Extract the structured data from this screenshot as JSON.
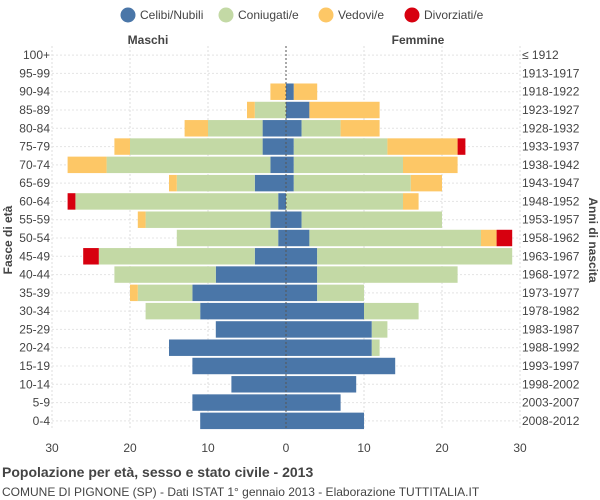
{
  "chart_data": {
    "type": "bar",
    "orientation": "horizontal-pyramid",
    "title": "Popolazione per età, sesso e stato civile - 2013",
    "subtitle": "COMUNE DI PIGNONE (SP) - Dati ISTAT 1° gennaio 2013 - Elaborazione TUTTITALIA.IT",
    "left_label": "Maschi",
    "right_label": "Femmine",
    "ylabel_left": "Fasce di età",
    "ylabel_right": "Anni di nascita",
    "xlim": [
      -30,
      30
    ],
    "x_ticks": [
      -30,
      -20,
      -10,
      0,
      10,
      20,
      30
    ],
    "x_tick_labels": [
      "30",
      "20",
      "10",
      "0",
      "10",
      "20",
      "30"
    ],
    "legend": [
      {
        "key": "celibi",
        "label": "Celibi/Nubili",
        "color": "#4a76a8"
      },
      {
        "key": "coniugati",
        "label": "Coniugati/e",
        "color": "#c3d9a5"
      },
      {
        "key": "vedovi",
        "label": "Vedovi/e",
        "color": "#fdc766"
      },
      {
        "key": "divorziati",
        "label": "Divorziati/e",
        "color": "#d7000f"
      }
    ],
    "categories": [
      "100+",
      "95-99",
      "90-94",
      "85-89",
      "80-84",
      "75-79",
      "70-74",
      "65-69",
      "60-64",
      "55-59",
      "50-54",
      "45-49",
      "40-44",
      "35-39",
      "30-34",
      "25-29",
      "20-24",
      "15-19",
      "10-14",
      "5-9",
      "0-4"
    ],
    "birth_years": [
      "≤ 1912",
      "1913-1917",
      "1918-1922",
      "1923-1927",
      "1928-1932",
      "1933-1937",
      "1938-1942",
      "1943-1947",
      "1948-1952",
      "1953-1957",
      "1958-1962",
      "1963-1967",
      "1968-1972",
      "1973-1977",
      "1978-1982",
      "1983-1987",
      "1988-1992",
      "1993-1997",
      "1998-2002",
      "2003-2007",
      "2008-2012"
    ],
    "males": {
      "celibi": [
        0,
        0,
        0,
        0,
        3,
        3,
        2,
        4,
        1,
        2,
        1,
        4,
        9,
        12,
        11,
        9,
        15,
        12,
        7,
        12,
        11
      ],
      "coniugati": [
        0,
        0,
        0,
        4,
        7,
        17,
        21,
        10,
        26,
        16,
        13,
        20,
        13,
        7,
        7,
        0,
        0,
        0,
        0,
        0,
        0
      ],
      "vedovi": [
        0,
        0,
        2,
        1,
        3,
        2,
        5,
        1,
        0,
        1,
        0,
        0,
        0,
        1,
        0,
        0,
        0,
        0,
        0,
        0,
        0
      ],
      "divorziati": [
        0,
        0,
        0,
        0,
        0,
        0,
        0,
        0,
        1,
        0,
        0,
        2,
        0,
        0,
        0,
        0,
        0,
        0,
        0,
        0,
        0
      ]
    },
    "females": {
      "celibi": [
        0,
        0,
        1,
        3,
        2,
        1,
        1,
        1,
        0,
        2,
        3,
        4,
        4,
        4,
        10,
        11,
        11,
        14,
        9,
        7,
        10
      ],
      "coniugati": [
        0,
        0,
        0,
        0,
        5,
        12,
        14,
        15,
        15,
        18,
        22,
        25,
        18,
        6,
        7,
        2,
        1,
        0,
        0,
        0,
        0
      ],
      "vedovi": [
        0,
        0,
        3,
        9,
        5,
        9,
        7,
        4,
        2,
        0,
        2,
        0,
        0,
        0,
        0,
        0,
        0,
        0,
        0,
        0,
        0
      ],
      "divorziati": [
        0,
        0,
        0,
        0,
        0,
        1,
        0,
        0,
        0,
        0,
        2,
        0,
        0,
        0,
        0,
        0,
        0,
        0,
        0,
        0,
        0
      ]
    }
  }
}
